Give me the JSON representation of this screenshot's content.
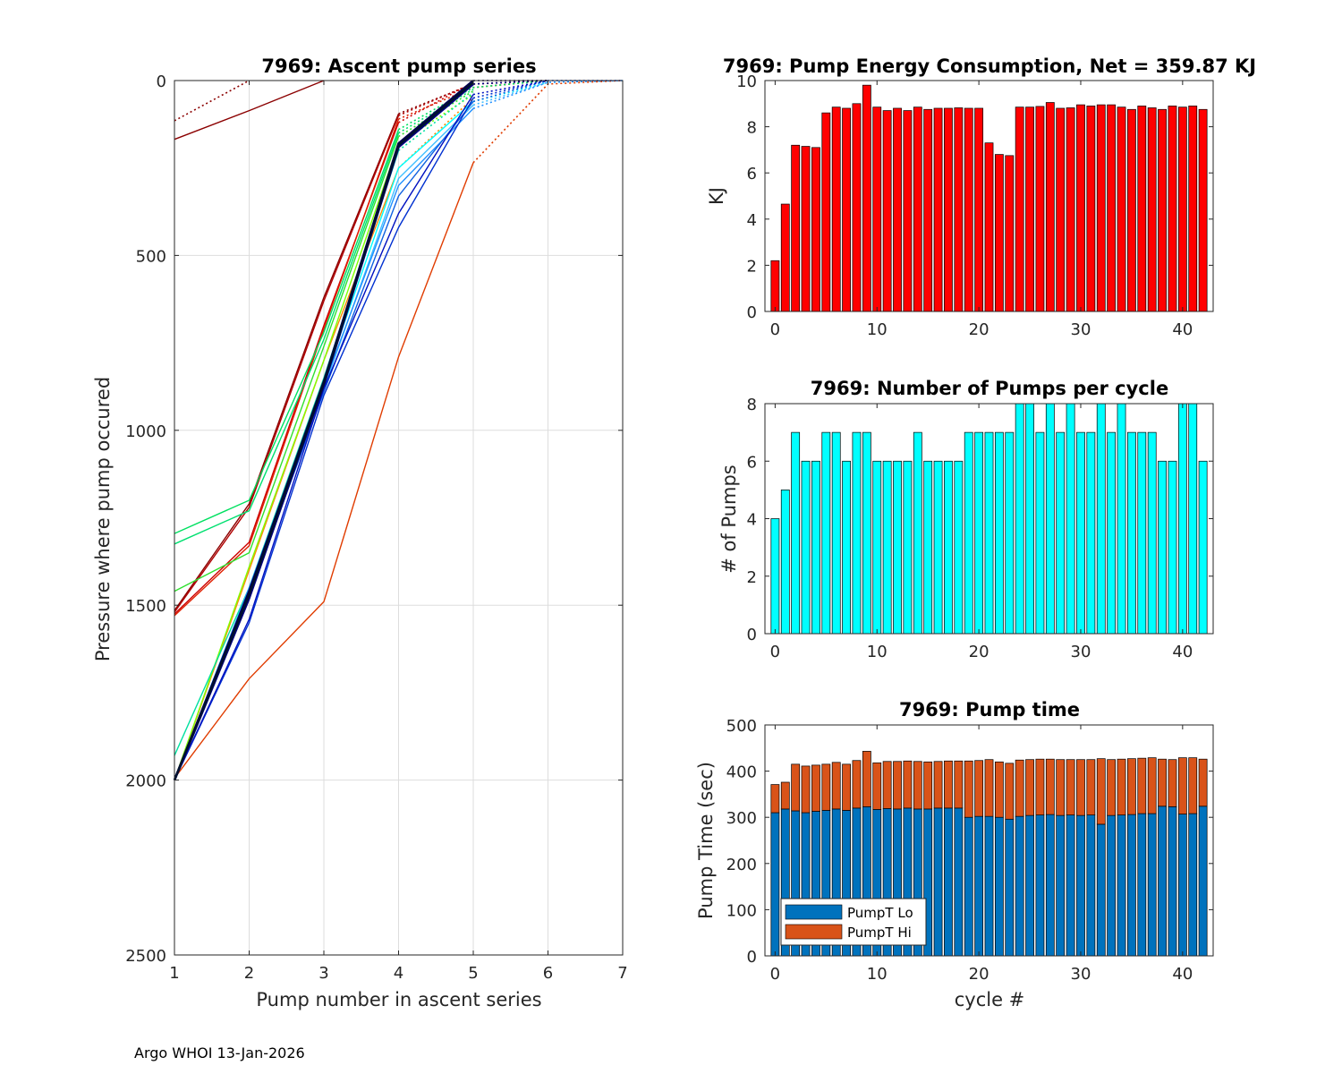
{
  "footer": "Argo WHOI 13-Jan-2026",
  "chart_data": [
    {
      "id": "ascent",
      "type": "line",
      "title": "7969: Ascent pump series",
      "xlabel": "Pump number in ascent series",
      "ylabel": "Pressure where pump occured",
      "xlim": [
        1,
        7
      ],
      "ylim": [
        0,
        2500
      ],
      "y_reversed": true,
      "xticks": [
        1,
        2,
        3,
        4,
        5,
        6,
        7
      ],
      "yticks": [
        0,
        500,
        1000,
        1500,
        2000,
        2500
      ],
      "grid": true,
      "series": [
        {
          "color": "#8b0000",
          "solid": [
            [
              1,
              168
            ],
            [
              2,
              86
            ],
            [
              3,
              0
            ]
          ],
          "dotted": []
        },
        {
          "color": "#8b0000",
          "solid": [],
          "dotted": [
            [
              1,
              115
            ],
            [
              2,
              0
            ]
          ]
        },
        {
          "color": "#8b0000",
          "solid": [
            [
              1,
              1515
            ],
            [
              2,
              1210
            ],
            [
              3,
              620
            ],
            [
              4,
              95
            ]
          ],
          "dotted": [
            [
              4,
              95
            ],
            [
              5,
              10
            ],
            [
              6,
              0
            ]
          ]
        },
        {
          "color": "#b00000",
          "solid": [
            [
              1,
              1520
            ],
            [
              2,
              1220
            ],
            [
              3,
              630
            ],
            [
              4,
              100
            ]
          ],
          "dotted": [
            [
              4,
              100
            ],
            [
              5,
              8
            ]
          ]
        },
        {
          "color": "#cc0000",
          "solid": [
            [
              1,
              1525
            ],
            [
              2,
              1320
            ],
            [
              3,
              700
            ],
            [
              4,
              120
            ]
          ],
          "dotted": [
            [
              4,
              120
            ],
            [
              5,
              5
            ]
          ]
        },
        {
          "color": "#e02000",
          "solid": [
            [
              1,
              1530
            ],
            [
              2,
              1330
            ],
            [
              3,
              710
            ],
            [
              4,
              110
            ]
          ],
          "dotted": [
            [
              4,
              110
            ],
            [
              5,
              20
            ],
            [
              6,
              0
            ]
          ]
        },
        {
          "color": "#e03c00",
          "solid": [
            [
              1,
              1995
            ],
            [
              2,
              1710
            ],
            [
              3,
              1490
            ],
            [
              4,
              790
            ],
            [
              5,
              235
            ]
          ],
          "dotted": [
            [
              5,
              235
            ],
            [
              6,
              10
            ],
            [
              7,
              0
            ]
          ]
        },
        {
          "color": "#ff8c00",
          "solid": [
            [
              1,
              2000
            ],
            [
              2,
              1400
            ],
            [
              3,
              800
            ],
            [
              4,
              250
            ]
          ],
          "dotted": [
            [
              4,
              250
            ],
            [
              5,
              50
            ]
          ]
        },
        {
          "color": "#00e060",
          "solid": [
            [
              1,
              1295
            ],
            [
              2,
              1200
            ],
            [
              3,
              720
            ],
            [
              4,
              140
            ]
          ],
          "dotted": [
            [
              4,
              140
            ],
            [
              5,
              20
            ],
            [
              6,
              0
            ]
          ]
        },
        {
          "color": "#00e070",
          "solid": [
            [
              1,
              1325
            ],
            [
              2,
              1230
            ],
            [
              3,
              740
            ],
            [
              4,
              150
            ]
          ],
          "dotted": [
            [
              4,
              150
            ],
            [
              5,
              25
            ]
          ]
        },
        {
          "color": "#30e030",
          "solid": [
            [
              1,
              1460
            ],
            [
              2,
              1350
            ],
            [
              3,
              760
            ],
            [
              4,
              160
            ]
          ],
          "dotted": [
            [
              4,
              160
            ],
            [
              5,
              30
            ]
          ]
        },
        {
          "color": "#7fff00",
          "solid": [
            [
              1,
              2000
            ],
            [
              2,
              1390
            ],
            [
              3,
              800
            ],
            [
              4,
              180
            ]
          ],
          "dotted": [
            [
              4,
              180
            ],
            [
              5,
              40
            ]
          ]
        },
        {
          "color": "#00e0a0",
          "solid": [
            [
              1,
              1930
            ],
            [
              2,
              1450
            ],
            [
              3,
              850
            ],
            [
              4,
              200
            ]
          ],
          "dotted": [
            [
              4,
              200
            ],
            [
              5,
              35
            ]
          ]
        },
        {
          "color": "#00ffff",
          "solid": [
            [
              1,
              2000
            ],
            [
              2,
              1450
            ],
            [
              3,
              860
            ],
            [
              4,
              250
            ],
            [
              5,
              60
            ]
          ],
          "dotted": [
            [
              5,
              60
            ],
            [
              6,
              5
            ]
          ]
        },
        {
          "color": "#40c0ff",
          "solid": [
            [
              1,
              2000
            ],
            [
              2,
              1450
            ],
            [
              3,
              880
            ],
            [
              4,
              280
            ],
            [
              5,
              70
            ]
          ],
          "dotted": [
            [
              5,
              70
            ],
            [
              6,
              5
            ]
          ]
        },
        {
          "color": "#2090ff",
          "solid": [
            [
              1,
              2000
            ],
            [
              2,
              1450
            ],
            [
              3,
              870
            ],
            [
              4,
              300
            ],
            [
              5,
              80
            ]
          ],
          "dotted": [
            [
              5,
              80
            ],
            [
              6,
              5
            ],
            [
              7,
              0
            ]
          ]
        },
        {
          "color": "#1060e0",
          "solid": [
            [
              1,
              2000
            ],
            [
              2,
              1470
            ],
            [
              3,
              890
            ],
            [
              4,
              330
            ],
            [
              5,
              60
            ]
          ],
          "dotted": [
            [
              5,
              60
            ],
            [
              6,
              0
            ]
          ]
        },
        {
          "color": "#0030d0",
          "solid": [
            [
              1,
              2000
            ],
            [
              2,
              1550
            ],
            [
              3,
              900
            ],
            [
              4,
              420
            ],
            [
              5,
              50
            ]
          ],
          "dotted": [
            [
              5,
              50
            ],
            [
              6,
              0
            ],
            [
              7,
              0
            ]
          ]
        },
        {
          "color": "#0010c0",
          "solid": [
            [
              1,
              2000
            ],
            [
              2,
              1540
            ],
            [
              3,
              880
            ],
            [
              4,
              380
            ],
            [
              5,
              40
            ]
          ],
          "dotted": [
            [
              5,
              40
            ],
            [
              6,
              0
            ]
          ]
        },
        {
          "color": "#000080",
          "solid": [
            [
              1,
              2000
            ],
            [
              2,
              1480
            ],
            [
              3,
              870
            ],
            [
              4,
              190
            ],
            [
              5,
              10
            ]
          ],
          "dotted": [
            [
              5,
              10
            ],
            [
              6,
              0
            ]
          ]
        },
        {
          "color": "#000050",
          "solid": [
            [
              1,
              2000
            ],
            [
              2,
              1460
            ],
            [
              3,
              860
            ],
            [
              4,
              180
            ],
            [
              5,
              0
            ]
          ],
          "dotted": [
            [
              5,
              0
            ],
            [
              6,
              0
            ]
          ]
        },
        {
          "color": "#001030",
          "solid": [
            [
              1,
              2000
            ],
            [
              2,
              1470
            ],
            [
              3,
              865
            ],
            [
              4,
              185
            ],
            [
              5,
              5
            ]
          ],
          "dotted": []
        }
      ]
    },
    {
      "id": "energy",
      "type": "bar",
      "title": "7969: Pump Energy Consumption,  Net = 359.87 KJ",
      "xlabel": "",
      "ylabel": "KJ",
      "xlim": [
        -1,
        43
      ],
      "ylim": [
        0,
        10
      ],
      "xticks": [
        0,
        10,
        20,
        30,
        40
      ],
      "yticks": [
        0,
        2,
        4,
        6,
        8,
        10
      ],
      "color": "#ff0000",
      "x": [
        0,
        1,
        2,
        3,
        4,
        5,
        6,
        7,
        8,
        9,
        10,
        11,
        12,
        13,
        14,
        15,
        16,
        17,
        18,
        19,
        20,
        21,
        22,
        23,
        24,
        25,
        26,
        27,
        28,
        29,
        30,
        31,
        32,
        33,
        34,
        35,
        36,
        37,
        38,
        39,
        40,
        41,
        42
      ],
      "values": [
        2.2,
        4.65,
        7.2,
        7.15,
        7.1,
        8.6,
        8.85,
        8.8,
        9.0,
        9.8,
        8.85,
        8.7,
        8.8,
        8.7,
        8.85,
        8.75,
        8.8,
        8.8,
        8.82,
        8.8,
        8.8,
        7.3,
        6.8,
        6.75,
        8.85,
        8.85,
        8.88,
        9.05,
        8.8,
        8.82,
        8.95,
        8.9,
        8.95,
        8.95,
        8.85,
        8.75,
        8.9,
        8.82,
        8.75,
        8.9,
        8.85,
        8.9,
        8.75
      ]
    },
    {
      "id": "pumps",
      "type": "bar",
      "title": "7969: Number of Pumps per cycle",
      "xlabel": "",
      "ylabel": "# of Pumps",
      "xlim": [
        -1,
        43
      ],
      "ylim": [
        0,
        8
      ],
      "xticks": [
        0,
        10,
        20,
        30,
        40
      ],
      "yticks": [
        0,
        2,
        4,
        6,
        8
      ],
      "color": "#00ffff",
      "x": [
        0,
        1,
        2,
        3,
        4,
        5,
        6,
        7,
        8,
        9,
        10,
        11,
        12,
        13,
        14,
        15,
        16,
        17,
        18,
        19,
        20,
        21,
        22,
        23,
        24,
        25,
        26,
        27,
        28,
        29,
        30,
        31,
        32,
        33,
        34,
        35,
        36,
        37,
        38,
        39,
        40,
        41,
        42
      ],
      "values": [
        4,
        5,
        7,
        6,
        6,
        7,
        7,
        6,
        7,
        7,
        6,
        6,
        6,
        6,
        7,
        6,
        6,
        6,
        6,
        7,
        7,
        7,
        7,
        7,
        8,
        8,
        7,
        8,
        7,
        8,
        7,
        7,
        8,
        7,
        8,
        7,
        7,
        7,
        6,
        6,
        8,
        8,
        6
      ]
    },
    {
      "id": "pumptime",
      "type": "bar",
      "stacked": true,
      "title": "7969: Pump time",
      "xlabel": "cycle #",
      "ylabel": "Pump Time (sec)",
      "xlim": [
        -1,
        43
      ],
      "ylim": [
        0,
        500
      ],
      "xticks": [
        0,
        10,
        20,
        30,
        40
      ],
      "yticks": [
        0,
        100,
        200,
        300,
        400,
        500
      ],
      "legend_position": "bottom-left",
      "x": [
        0,
        1,
        2,
        3,
        4,
        5,
        6,
        7,
        8,
        9,
        10,
        11,
        12,
        13,
        14,
        15,
        16,
        17,
        18,
        19,
        20,
        21,
        22,
        23,
        24,
        25,
        26,
        27,
        28,
        29,
        30,
        31,
        32,
        33,
        34,
        35,
        36,
        37,
        38,
        39,
        40,
        41,
        42
      ],
      "series": [
        {
          "name": "PumpT Lo",
          "color": "#0072bd",
          "values": [
            310,
            318,
            314,
            310,
            313,
            315,
            318,
            315,
            320,
            323,
            317,
            319,
            318,
            320,
            318,
            318,
            320,
            320,
            320,
            300,
            302,
            302,
            300,
            296,
            302,
            304,
            305,
            306,
            304,
            305,
            304,
            305,
            285,
            304,
            305,
            306,
            308,
            308,
            324,
            323,
            307,
            308,
            324
          ]
        },
        {
          "name": "PumpT Hi",
          "color": "#d95319",
          "values": [
            61,
            58,
            101,
            101,
            100,
            100,
            101,
            100,
            103,
            120,
            101,
            102,
            103,
            102,
            103,
            102,
            101,
            102,
            102,
            122,
            121,
            123,
            120,
            121,
            122,
            121,
            121,
            120,
            121,
            120,
            121,
            120,
            142,
            121,
            121,
            121,
            120,
            121,
            102,
            102,
            122,
            121,
            102
          ]
        }
      ]
    }
  ]
}
